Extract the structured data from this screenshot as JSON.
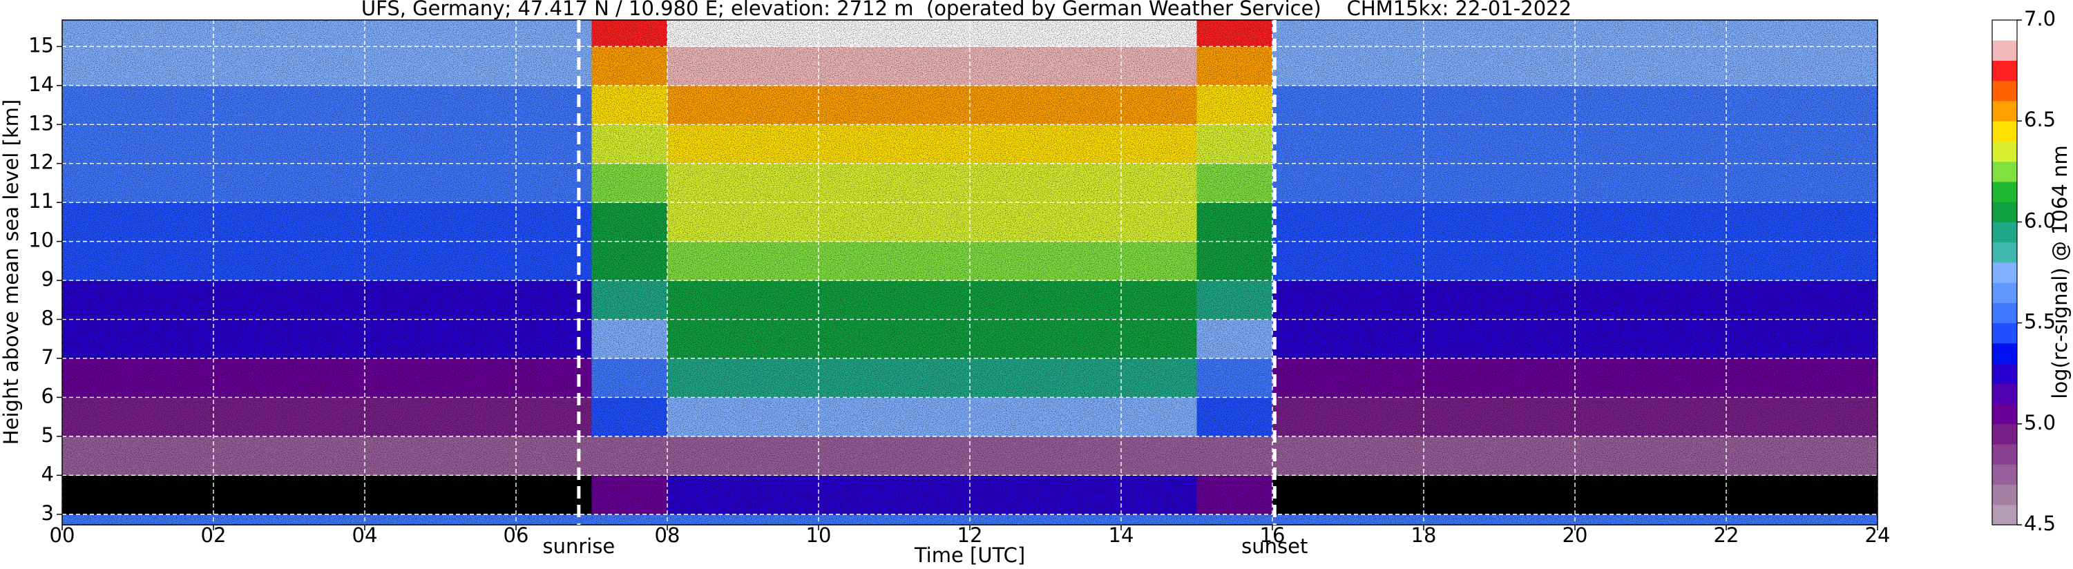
{
  "chart_data": {
    "type": "heatmap",
    "title": "UFS, Germany; 47.417 N / 10.980 E; elevation: 2712 m  (operated by German Weather Service)    CHM15kx: 22-01-2022",
    "x_label": "Time [UTC]",
    "y_label": "Height above mean sea level [km]",
    "colorbar_label": "log(rc-signal) @ 1064 nm",
    "xlim": [
      0,
      24
    ],
    "ylim": [
      2.73,
      15.68
    ],
    "xticks": [
      {
        "value": 0,
        "label": "00"
      },
      {
        "value": 2,
        "label": "02"
      },
      {
        "value": 4,
        "label": "04"
      },
      {
        "value": 6,
        "label": "06"
      },
      {
        "value": 8,
        "label": "08"
      },
      10,
      12,
      14,
      16,
      18,
      20,
      22,
      24
    ],
    "yticks": [
      3,
      4,
      5,
      6,
      7,
      8,
      9,
      10,
      11,
      12,
      13,
      14,
      15
    ],
    "grid": true,
    "x_edges": [
      0,
      1,
      2,
      3,
      4,
      5,
      6,
      7,
      8,
      9,
      10,
      11,
      12,
      13,
      14,
      15,
      16,
      17,
      18,
      19,
      20,
      21,
      22,
      23,
      24
    ],
    "y_edges": [
      2.73,
      3,
      4,
      5,
      6,
      7,
      8,
      9,
      10,
      11,
      12,
      13,
      14,
      15,
      15.68
    ],
    "z": [
      [
        5.6,
        5.6,
        5.6,
        5.6,
        5.6,
        5.6,
        5.6,
        5.6,
        5.6,
        5.6,
        5.6,
        5.6,
        5.6,
        5.6,
        5.6,
        5.6,
        5.6,
        5.6,
        5.6,
        5.6,
        5.6,
        5.6,
        5.6,
        5.6
      ],
      [
        4.3,
        4.3,
        4.3,
        4.3,
        4.3,
        4.3,
        4.3,
        5.0,
        5.2,
        5.2,
        5.2,
        5.2,
        5.2,
        5.2,
        5.2,
        5.0,
        4.3,
        4.3,
        4.3,
        4.3,
        4.3,
        4.3,
        4.3,
        4.3
      ],
      [
        4.8,
        4.8,
        4.8,
        4.8,
        4.8,
        4.8,
        4.8,
        4.8,
        4.8,
        4.8,
        4.8,
        4.8,
        4.8,
        4.8,
        4.8,
        4.8,
        4.8,
        4.8,
        4.8,
        4.8,
        4.8,
        4.8,
        4.8,
        4.8
      ],
      [
        4.9,
        4.9,
        4.9,
        4.9,
        4.9,
        4.9,
        4.9,
        5.4,
        5.7,
        5.7,
        5.7,
        5.7,
        5.7,
        5.7,
        5.7,
        5.4,
        4.9,
        4.9,
        4.9,
        4.9,
        4.9,
        4.9,
        4.9,
        4.9
      ],
      [
        5.0,
        5.0,
        5.0,
        5.0,
        5.0,
        5.0,
        5.0,
        5.6,
        5.9,
        5.9,
        5.9,
        5.9,
        5.9,
        5.9,
        5.9,
        5.6,
        5.0,
        5.0,
        5.0,
        5.0,
        5.0,
        5.0,
        5.0,
        5.0
      ],
      [
        5.2,
        5.2,
        5.2,
        5.2,
        5.2,
        5.2,
        5.2,
        5.8,
        6.0,
        6.0,
        6.0,
        6.0,
        6.0,
        6.0,
        6.0,
        5.8,
        5.2,
        5.2,
        5.2,
        5.2,
        5.2,
        5.2,
        5.2,
        5.2
      ],
      [
        5.3,
        5.3,
        5.3,
        5.3,
        5.3,
        5.3,
        5.3,
        5.9,
        6.1,
        6.1,
        6.1,
        6.1,
        6.1,
        6.1,
        6.1,
        5.9,
        5.3,
        5.3,
        5.3,
        5.3,
        5.3,
        5.3,
        5.3,
        5.3
      ],
      [
        5.4,
        5.4,
        5.4,
        5.4,
        5.4,
        5.4,
        5.4,
        6.0,
        6.2,
        6.2,
        6.2,
        6.2,
        6.2,
        6.2,
        6.2,
        6.0,
        5.4,
        5.4,
        5.4,
        5.4,
        5.4,
        5.4,
        5.4,
        5.4
      ],
      [
        5.45,
        5.45,
        5.45,
        5.45,
        5.45,
        5.45,
        5.45,
        6.1,
        6.3,
        6.3,
        6.3,
        6.3,
        6.3,
        6.3,
        6.3,
        6.1,
        5.45,
        5.45,
        5.45,
        5.45,
        5.45,
        5.45,
        5.45,
        5.45
      ],
      [
        5.5,
        5.5,
        5.5,
        5.5,
        5.5,
        5.5,
        5.5,
        6.2,
        6.35,
        6.35,
        6.35,
        6.35,
        6.35,
        6.35,
        6.35,
        6.2,
        5.5,
        5.5,
        5.5,
        5.5,
        5.5,
        5.5,
        5.5,
        5.5
      ],
      [
        5.55,
        5.55,
        5.55,
        5.55,
        5.55,
        5.55,
        5.55,
        6.3,
        6.4,
        6.4,
        6.4,
        6.4,
        6.4,
        6.4,
        6.4,
        6.3,
        5.55,
        5.55,
        5.55,
        5.55,
        5.55,
        5.55,
        5.55,
        5.55
      ],
      [
        5.6,
        5.6,
        5.6,
        5.6,
        5.6,
        5.6,
        5.6,
        6.4,
        6.6,
        6.6,
        6.6,
        6.6,
        6.6,
        6.6,
        6.6,
        6.4,
        5.6,
        5.6,
        5.6,
        5.6,
        5.6,
        5.6,
        5.6,
        5.6
      ],
      [
        5.7,
        5.7,
        5.7,
        5.7,
        5.7,
        5.7,
        5.7,
        6.6,
        6.8,
        6.8,
        6.8,
        6.8,
        6.8,
        6.8,
        6.8,
        6.6,
        5.7,
        5.7,
        5.7,
        5.7,
        5.7,
        5.7,
        5.7,
        5.7
      ],
      [
        5.75,
        5.75,
        5.75,
        5.75,
        5.75,
        5.75,
        5.75,
        6.7,
        6.9,
        6.9,
        6.9,
        6.9,
        6.9,
        6.9,
        6.9,
        6.7,
        5.75,
        5.75,
        5.75,
        5.75,
        5.75,
        5.75,
        5.75,
        5.75
      ]
    ],
    "zlim": [
      4.5,
      7
    ],
    "zticks": [
      4.5,
      {
        "value": 5,
        "label": "5.0"
      },
      5.5,
      {
        "value": 6,
        "label": "6.0"
      },
      6.5,
      {
        "value": 7,
        "label": "7.0"
      }
    ],
    "colors": [
      "#b49cb4",
      "#a580a5",
      "#98609a",
      "#8a4090",
      "#782088",
      "#6a0098",
      "#5000b0",
      "#2800d0",
      "#0010f0",
      "#2050ff",
      "#4078ff",
      "#6098ff",
      "#80b0ff",
      "#40b8b0",
      "#20a888",
      "#10a040",
      "#20b830",
      "#80e040",
      "#d8f030",
      "#ffe000",
      "#ffa000",
      "#ff6000",
      "#ff2020",
      "#f0b8b8",
      "#ffffff"
    ],
    "below_color": "#000000",
    "annotations": [
      {
        "text": "sunrise",
        "x": 6.83
      },
      {
        "text": "sunset",
        "x": 16.03
      }
    ]
  }
}
